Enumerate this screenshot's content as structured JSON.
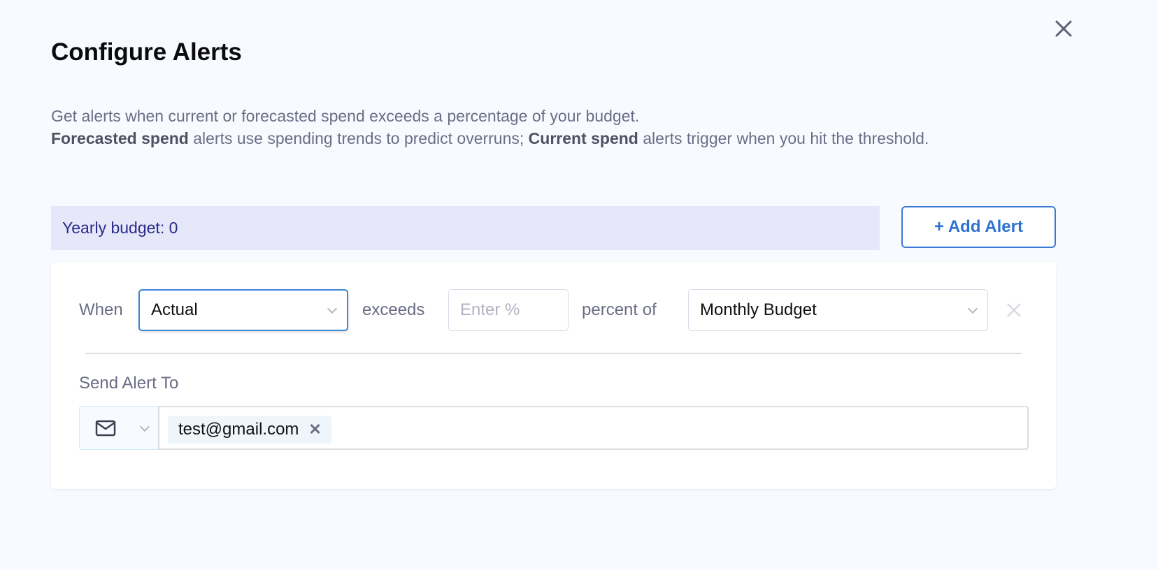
{
  "dialog": {
    "title": "Configure Alerts",
    "description_line1": "Get alerts when current or forecasted spend exceeds a percentage of your budget.",
    "forecasted_bold": "Forecasted spend",
    "description_mid": " alerts use spending trends to predict overruns; ",
    "current_bold": "Current spend",
    "description_end": " alerts trigger when you hit the threshold.",
    "close_icon": "close-icon"
  },
  "budget": {
    "label": "Yearly budget: 0"
  },
  "add_alert": {
    "label": "+ Add Alert",
    "color": "#2f73d0"
  },
  "alert": {
    "when_label": "When",
    "type_value": "Actual",
    "exceeds_label": "exceeds",
    "percent_placeholder": "Enter %",
    "percent_of_label": "percent of",
    "budget_value": "Monthly Budget",
    "send_label": "Send Alert To",
    "channel_icon": "mail-icon",
    "recipients": [
      "test@gmail.com"
    ]
  }
}
